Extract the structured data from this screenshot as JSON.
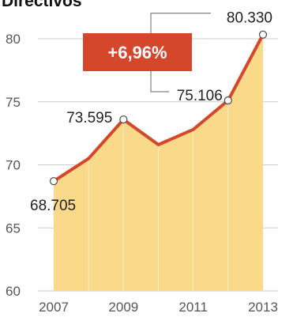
{
  "chart_data": {
    "type": "area",
    "title": "Directivos",
    "x": [
      2007,
      2008,
      2009,
      2010,
      2011,
      2012,
      2013
    ],
    "series": [
      {
        "values": [
          68.705,
          70.5,
          73.595,
          71.6,
          72.8,
          75.106,
          80.33
        ]
      }
    ],
    "ylim": [
      60,
      81
    ],
    "yticks": [
      "60",
      "65",
      "70",
      "75",
      "80"
    ],
    "xticks": [
      "2007",
      "2009",
      "2011",
      "2013"
    ],
    "labeled_points": [
      {
        "x": 2007,
        "label": "68.705"
      },
      {
        "x": 2009,
        "label": "73.595"
      },
      {
        "x": 2012,
        "label": "75.106"
      },
      {
        "x": 2013,
        "label": "80.330"
      }
    ],
    "annotation": {
      "text": "+6,96%",
      "from_x": 2012,
      "to_x": 2013
    },
    "grid": true,
    "colors": {
      "line": "#d4472b",
      "fill": "#f9d98a",
      "badge": "#d4472b",
      "grid": "#cccccc",
      "connector": "#666666"
    }
  }
}
